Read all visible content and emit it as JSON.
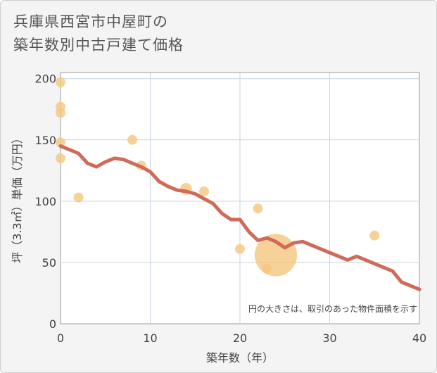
{
  "header": {
    "title_line1": "兵庫県西宮市中屋町の",
    "title_line2": "築年数別中古戸建て価格"
  },
  "chart_data": {
    "type": "scatter+line",
    "title": "兵庫県西宮市中屋町の築年数別中古戸建て価格",
    "xlabel": "築年数（年）",
    "ylabel": "坪（3.3㎡）単価（万円）",
    "xlim": [
      0,
      40
    ],
    "ylim": [
      0,
      205
    ],
    "xticks": [
      0,
      10,
      20,
      30,
      40
    ],
    "yticks": [
      0,
      50,
      100,
      150,
      200
    ],
    "grid": true,
    "note": "円の大きさは、取引のあった物件面積を示す",
    "colors": {
      "scatter": "#f5c77e",
      "line": "#d06b5a"
    },
    "scatter": [
      {
        "x": 0,
        "y": 197,
        "size": 1
      },
      {
        "x": 0,
        "y": 177,
        "size": 1
      },
      {
        "x": 0,
        "y": 172,
        "size": 1
      },
      {
        "x": 0,
        "y": 148,
        "size": 1
      },
      {
        "x": 0,
        "y": 135,
        "size": 1
      },
      {
        "x": 2,
        "y": 103,
        "size": 1
      },
      {
        "x": 8,
        "y": 150,
        "size": 1
      },
      {
        "x": 9,
        "y": 129,
        "size": 1
      },
      {
        "x": 14,
        "y": 110,
        "size": 1.2
      },
      {
        "x": 16,
        "y": 108,
        "size": 1
      },
      {
        "x": 20,
        "y": 61,
        "size": 1
      },
      {
        "x": 22,
        "y": 94,
        "size": 1
      },
      {
        "x": 23,
        "y": 45,
        "size": 1
      },
      {
        "x": 24,
        "y": 56,
        "size": 4.3
      },
      {
        "x": 35,
        "y": 72,
        "size": 1
      }
    ],
    "line": {
      "x": [
        0,
        1,
        2,
        3,
        4,
        5,
        6,
        7,
        8,
        9,
        10,
        11,
        12,
        13,
        14,
        15,
        16,
        17,
        18,
        19,
        20,
        21,
        22,
        23,
        24,
        25,
        26,
        27,
        28,
        29,
        30,
        31,
        32,
        33,
        34,
        35,
        36,
        37,
        38,
        39,
        40
      ],
      "y": [
        145,
        142,
        139,
        131,
        128,
        132,
        135,
        134,
        131,
        128,
        124,
        116,
        112,
        109,
        108,
        106,
        102,
        98,
        90,
        85,
        85,
        75,
        68,
        70,
        67,
        62,
        66,
        67,
        64,
        61,
        58,
        55,
        52,
        55,
        52,
        49,
        46,
        43,
        34,
        31,
        28
      ]
    }
  }
}
